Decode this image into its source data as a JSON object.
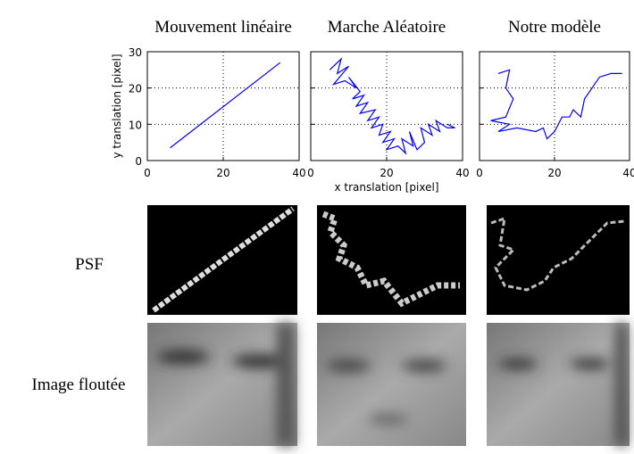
{
  "chart_data": [
    {
      "type": "line",
      "title": "Mouvement linéaire",
      "ylabel": "y translation [pixel]",
      "series": [
        {
          "color": "#0000ff",
          "x": [
            6,
            35
          ],
          "values": [
            3.5,
            27
          ]
        }
      ],
      "xlim": [
        0,
        40
      ],
      "ylim": [
        0,
        30
      ],
      "xticks": [
        0,
        20,
        40
      ],
      "yticks": [
        0,
        10,
        20,
        30
      ],
      "grid": true,
      "ytick_labels": true
    },
    {
      "type": "line",
      "title": "Marche Aléatoire",
      "xlabel": "x translation [pixel]",
      "series": [
        {
          "color": "#0000ff",
          "x": [
            5,
            8,
            7,
            10,
            6,
            9,
            12,
            10,
            13,
            11,
            14,
            12,
            15,
            13,
            17,
            15,
            18,
            16,
            19,
            18,
            21,
            19,
            22,
            20,
            23,
            25,
            24,
            27,
            26,
            28,
            30,
            29,
            32,
            31,
            34,
            33,
            36,
            38,
            36
          ],
          "values": [
            25,
            28,
            24,
            26,
            21,
            22,
            20,
            23,
            19,
            17,
            18,
            15,
            16,
            13,
            14,
            11,
            12,
            9,
            10,
            7,
            8,
            5,
            6,
            3,
            4,
            2,
            6,
            4,
            8,
            3,
            5,
            9,
            7,
            10,
            8,
            11,
            9,
            9,
            10
          ]
        }
      ],
      "xlim": [
        0,
        40
      ],
      "ylim": [
        0,
        30
      ],
      "xticks": [
        0,
        20,
        40
      ],
      "yticks": [
        0,
        10,
        20,
        30
      ],
      "grid": true,
      "ytick_labels": false
    },
    {
      "type": "line",
      "title": "Notre modèle",
      "series": [
        {
          "color": "#0000ff",
          "x": [
            5,
            8,
            7,
            9,
            7,
            3,
            8,
            5,
            10,
            15,
            17,
            18,
            20,
            22,
            24,
            25,
            27,
            28,
            30,
            32,
            35,
            38
          ],
          "values": [
            24,
            25,
            20,
            17,
            12,
            11,
            10,
            8,
            9,
            8,
            9,
            6,
            8,
            12,
            12,
            14,
            12,
            17,
            20,
            23,
            24,
            24
          ]
        }
      ],
      "xlim": [
        0,
        40
      ],
      "ylim": [
        0,
        30
      ],
      "xticks": [
        0,
        20,
        40
      ],
      "yticks": [
        0,
        10,
        20,
        30
      ],
      "grid": true,
      "ytick_labels": false
    }
  ],
  "row_labels": [
    "PSF",
    "Image floutée"
  ]
}
